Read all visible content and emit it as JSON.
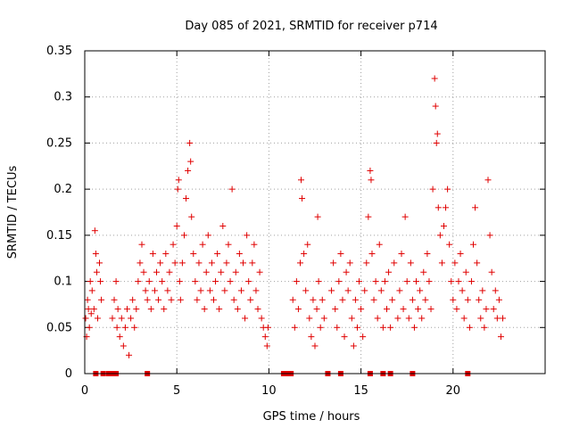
{
  "chart_data": {
    "type": "scatter",
    "title": "Day 085 of 2021, SRMTID for receiver p714",
    "xlabel": "GPS time / hours",
    "ylabel": "SRMTID / TECUs",
    "xlim": [
      0,
      25
    ],
    "ylim": [
      0,
      0.35
    ],
    "x_ticks": [
      0,
      5,
      10,
      15,
      20
    ],
    "x_tick_labels": [
      "0",
      "5",
      "10",
      "15",
      "20"
    ],
    "y_ticks": [
      0,
      0.05,
      0.1,
      0.15,
      0.2,
      0.25,
      0.3,
      0.35
    ],
    "y_tick_labels": [
      "0",
      "0.05",
      "0.1",
      "0.15",
      "0.2",
      "0.25",
      "0.3",
      "0.35"
    ],
    "grid": true,
    "marker": "+",
    "series_color": "#e00000",
    "series": [
      {
        "name": "SRMTID",
        "points": [
          [
            0.05,
            0.06
          ],
          [
            0.1,
            0.04
          ],
          [
            0.15,
            0.08
          ],
          [
            0.2,
            0.07
          ],
          [
            0.25,
            0.05
          ],
          [
            0.3,
            0.1
          ],
          [
            0.35,
            0.065
          ],
          [
            0.4,
            0.09
          ],
          [
            0.5,
            0.07
          ],
          [
            0.55,
            0.155
          ],
          [
            0.6,
            0.13
          ],
          [
            0.65,
            0.11
          ],
          [
            0.7,
            0.06
          ],
          [
            0.8,
            0.12
          ],
          [
            0.85,
            0.1
          ],
          [
            0.9,
            0.08
          ],
          [
            1.5,
            0.06
          ],
          [
            1.6,
            0.08
          ],
          [
            1.7,
            0.1
          ],
          [
            1.75,
            0.05
          ],
          [
            1.8,
            0.07
          ],
          [
            1.9,
            0.04
          ],
          [
            2.0,
            0.06
          ],
          [
            2.1,
            0.03
          ],
          [
            2.2,
            0.05
          ],
          [
            2.3,
            0.07
          ],
          [
            2.4,
            0.02
          ],
          [
            2.5,
            0.06
          ],
          [
            2.6,
            0.08
          ],
          [
            2.7,
            0.05
          ],
          [
            2.8,
            0.07
          ],
          [
            2.9,
            0.1
          ],
          [
            3.0,
            0.12
          ],
          [
            3.1,
            0.14
          ],
          [
            3.2,
            0.11
          ],
          [
            3.3,
            0.09
          ],
          [
            3.4,
            0.08
          ],
          [
            3.5,
            0.1
          ],
          [
            3.6,
            0.07
          ],
          [
            3.7,
            0.13
          ],
          [
            3.8,
            0.09
          ],
          [
            3.9,
            0.11
          ],
          [
            4.0,
            0.08
          ],
          [
            4.1,
            0.12
          ],
          [
            4.2,
            0.1
          ],
          [
            4.3,
            0.07
          ],
          [
            4.4,
            0.13
          ],
          [
            4.5,
            0.09
          ],
          [
            4.6,
            0.11
          ],
          [
            4.7,
            0.08
          ],
          [
            4.8,
            0.14
          ],
          [
            4.9,
            0.12
          ],
          [
            5.0,
            0.16
          ],
          [
            5.05,
            0.2
          ],
          [
            5.1,
            0.21
          ],
          [
            5.15,
            0.1
          ],
          [
            5.2,
            0.08
          ],
          [
            5.3,
            0.12
          ],
          [
            5.4,
            0.15
          ],
          [
            5.5,
            0.19
          ],
          [
            5.6,
            0.22
          ],
          [
            5.7,
            0.25
          ],
          [
            5.75,
            0.23
          ],
          [
            5.8,
            0.17
          ],
          [
            5.9,
            0.13
          ],
          [
            6.0,
            0.1
          ],
          [
            6.1,
            0.08
          ],
          [
            6.2,
            0.12
          ],
          [
            6.3,
            0.09
          ],
          [
            6.4,
            0.14
          ],
          [
            6.5,
            0.07
          ],
          [
            6.6,
            0.11
          ],
          [
            6.7,
            0.15
          ],
          [
            6.8,
            0.09
          ],
          [
            6.9,
            0.12
          ],
          [
            7.0,
            0.08
          ],
          [
            7.1,
            0.1
          ],
          [
            7.2,
            0.13
          ],
          [
            7.3,
            0.07
          ],
          [
            7.4,
            0.11
          ],
          [
            7.5,
            0.16
          ],
          [
            7.6,
            0.09
          ],
          [
            7.7,
            0.12
          ],
          [
            7.8,
            0.14
          ],
          [
            7.9,
            0.1
          ],
          [
            8.0,
            0.2
          ],
          [
            8.1,
            0.08
          ],
          [
            8.2,
            0.11
          ],
          [
            8.3,
            0.07
          ],
          [
            8.4,
            0.13
          ],
          [
            8.5,
            0.09
          ],
          [
            8.6,
            0.12
          ],
          [
            8.7,
            0.06
          ],
          [
            8.8,
            0.15
          ],
          [
            8.9,
            0.1
          ],
          [
            9.0,
            0.08
          ],
          [
            9.1,
            0.12
          ],
          [
            9.2,
            0.14
          ],
          [
            9.3,
            0.09
          ],
          [
            9.4,
            0.07
          ],
          [
            9.5,
            0.11
          ],
          [
            9.6,
            0.06
          ],
          [
            9.7,
            0.05
          ],
          [
            9.8,
            0.04
          ],
          [
            9.9,
            0.03
          ],
          [
            9.95,
            0.05
          ],
          [
            11.3,
            0.08
          ],
          [
            11.4,
            0.05
          ],
          [
            11.5,
            0.1
          ],
          [
            11.6,
            0.07
          ],
          [
            11.7,
            0.12
          ],
          [
            11.75,
            0.21
          ],
          [
            11.8,
            0.19
          ],
          [
            11.9,
            0.13
          ],
          [
            12.0,
            0.09
          ],
          [
            12.1,
            0.14
          ],
          [
            12.2,
            0.06
          ],
          [
            12.3,
            0.04
          ],
          [
            12.4,
            0.08
          ],
          [
            12.5,
            0.03
          ],
          [
            12.6,
            0.07
          ],
          [
            12.65,
            0.17
          ],
          [
            12.7,
            0.1
          ],
          [
            12.8,
            0.05
          ],
          [
            12.9,
            0.08
          ],
          [
            13.0,
            0.06
          ],
          [
            13.4,
            0.09
          ],
          [
            13.5,
            0.12
          ],
          [
            13.6,
            0.07
          ],
          [
            13.7,
            0.05
          ],
          [
            13.8,
            0.1
          ],
          [
            13.9,
            0.13
          ],
          [
            14.0,
            0.08
          ],
          [
            14.1,
            0.04
          ],
          [
            14.2,
            0.11
          ],
          [
            14.3,
            0.09
          ],
          [
            14.4,
            0.12
          ],
          [
            14.5,
            0.06
          ],
          [
            14.6,
            0.03
          ],
          [
            14.7,
            0.08
          ],
          [
            14.8,
            0.05
          ],
          [
            14.9,
            0.1
          ],
          [
            15.0,
            0.07
          ],
          [
            15.1,
            0.04
          ],
          [
            15.2,
            0.09
          ],
          [
            15.3,
            0.12
          ],
          [
            15.4,
            0.17
          ],
          [
            15.5,
            0.22
          ],
          [
            15.55,
            0.21
          ],
          [
            15.6,
            0.13
          ],
          [
            15.7,
            0.08
          ],
          [
            15.8,
            0.1
          ],
          [
            15.9,
            0.06
          ],
          [
            16.0,
            0.14
          ],
          [
            16.1,
            0.09
          ],
          [
            16.2,
            0.05
          ],
          [
            16.3,
            0.1
          ],
          [
            16.4,
            0.07
          ],
          [
            16.5,
            0.11
          ],
          [
            16.6,
            0.05
          ],
          [
            16.7,
            0.08
          ],
          [
            16.8,
            0.12
          ],
          [
            17.0,
            0.06
          ],
          [
            17.1,
            0.09
          ],
          [
            17.2,
            0.13
          ],
          [
            17.3,
            0.07
          ],
          [
            17.4,
            0.17
          ],
          [
            17.5,
            0.1
          ],
          [
            17.6,
            0.06
          ],
          [
            17.7,
            0.12
          ],
          [
            17.8,
            0.08
          ],
          [
            17.9,
            0.05
          ],
          [
            18.0,
            0.1
          ],
          [
            18.1,
            0.07
          ],
          [
            18.2,
            0.09
          ],
          [
            18.3,
            0.06
          ],
          [
            18.4,
            0.11
          ],
          [
            18.5,
            0.08
          ],
          [
            18.6,
            0.13
          ],
          [
            18.7,
            0.1
          ],
          [
            18.8,
            0.07
          ],
          [
            18.9,
            0.2
          ],
          [
            19.0,
            0.32
          ],
          [
            19.05,
            0.29
          ],
          [
            19.1,
            0.25
          ],
          [
            19.15,
            0.26
          ],
          [
            19.2,
            0.18
          ],
          [
            19.3,
            0.15
          ],
          [
            19.4,
            0.12
          ],
          [
            19.5,
            0.16
          ],
          [
            19.6,
            0.18
          ],
          [
            19.7,
            0.2
          ],
          [
            19.8,
            0.14
          ],
          [
            19.9,
            0.1
          ],
          [
            20.0,
            0.08
          ],
          [
            20.1,
            0.12
          ],
          [
            20.2,
            0.07
          ],
          [
            20.3,
            0.1
          ],
          [
            20.4,
            0.13
          ],
          [
            20.5,
            0.09
          ],
          [
            20.6,
            0.06
          ],
          [
            20.7,
            0.11
          ],
          [
            20.8,
            0.08
          ],
          [
            20.9,
            0.05
          ],
          [
            21.0,
            0.1
          ],
          [
            21.1,
            0.14
          ],
          [
            21.2,
            0.18
          ],
          [
            21.3,
            0.12
          ],
          [
            21.4,
            0.08
          ],
          [
            21.5,
            0.06
          ],
          [
            21.6,
            0.09
          ],
          [
            21.7,
            0.05
          ],
          [
            21.8,
            0.07
          ],
          [
            21.9,
            0.21
          ],
          [
            22.0,
            0.15
          ],
          [
            22.1,
            0.11
          ],
          [
            22.2,
            0.07
          ],
          [
            22.3,
            0.09
          ],
          [
            22.4,
            0.06
          ],
          [
            22.5,
            0.08
          ],
          [
            22.6,
            0.04
          ],
          [
            22.7,
            0.06
          ],
          [
            0.6,
            0
          ],
          [
            1.0,
            0
          ],
          [
            1.3,
            0
          ],
          [
            1.5,
            0
          ],
          [
            1.7,
            0
          ],
          [
            3.4,
            0
          ],
          [
            10.8,
            0
          ],
          [
            11.0,
            0
          ],
          [
            11.2,
            0
          ],
          [
            13.2,
            0
          ],
          [
            13.9,
            0
          ],
          [
            15.5,
            0
          ],
          [
            16.2,
            0
          ],
          [
            16.6,
            0
          ],
          [
            17.8,
            0
          ],
          [
            20.8,
            0
          ]
        ]
      }
    ]
  }
}
